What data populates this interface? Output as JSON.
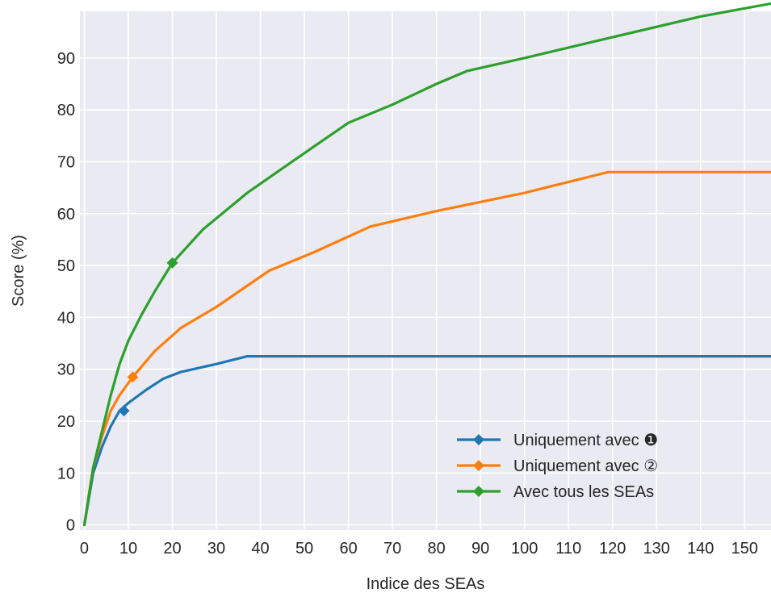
{
  "chart_data": {
    "type": "line",
    "title": "",
    "xlabel": "Indice des SEAs",
    "ylabel": "Score (%)",
    "xlim": [
      -1,
      156
    ],
    "ylim": [
      -1,
      99
    ],
    "xticks": [
      0,
      10,
      20,
      30,
      40,
      50,
      60,
      70,
      80,
      90,
      100,
      110,
      120,
      130,
      140,
      150
    ],
    "yticks": [
      0,
      10,
      20,
      30,
      40,
      50,
      60,
      70,
      80,
      90
    ],
    "grid": true,
    "legend_position": "bottom-right",
    "background": "#eaeaf2",
    "series": [
      {
        "name": "Uniquement avec ❶",
        "color": "#1f77b4",
        "x": [
          0,
          2,
          4,
          6,
          8,
          10,
          14,
          18,
          22,
          30,
          37,
          45,
          60,
          80,
          100,
          120,
          140,
          156
        ],
        "y": [
          0,
          10,
          15,
          19,
          22,
          23.5,
          26,
          28.2,
          29.5,
          31,
          32.5,
          32.5,
          32.5,
          32.5,
          32.5,
          32.5,
          32.5,
          32.5
        ],
        "marker": {
          "x": 9,
          "y": 22
        }
      },
      {
        "name": "Uniquement avec ②",
        "color": "#ff7f0e",
        "x": [
          0,
          2,
          4,
          6,
          8,
          11,
          16,
          22,
          30,
          42,
          52,
          65,
          80,
          100,
          119,
          130,
          145,
          156
        ],
        "y": [
          0,
          11,
          17,
          22,
          25,
          28.5,
          33.5,
          38,
          42,
          49,
          52.5,
          57.5,
          60.5,
          64,
          68,
          68,
          68,
          68
        ],
        "marker": {
          "x": 11,
          "y": 28.5
        }
      },
      {
        "name": "Avec tous les SEAs",
        "color": "#2ca02c",
        "x": [
          0,
          2,
          4,
          6,
          8,
          10,
          13,
          16,
          20,
          27,
          37,
          48,
          60,
          70,
          80,
          87,
          100,
          120,
          140,
          156
        ],
        "y": [
          0,
          11,
          18,
          25,
          31,
          35.5,
          40.5,
          45,
          50.5,
          57,
          64,
          70.5,
          77.5,
          81,
          85,
          87.5,
          90,
          94,
          98,
          100.5
        ],
        "marker": {
          "x": 20,
          "y": 50.5
        }
      }
    ]
  }
}
